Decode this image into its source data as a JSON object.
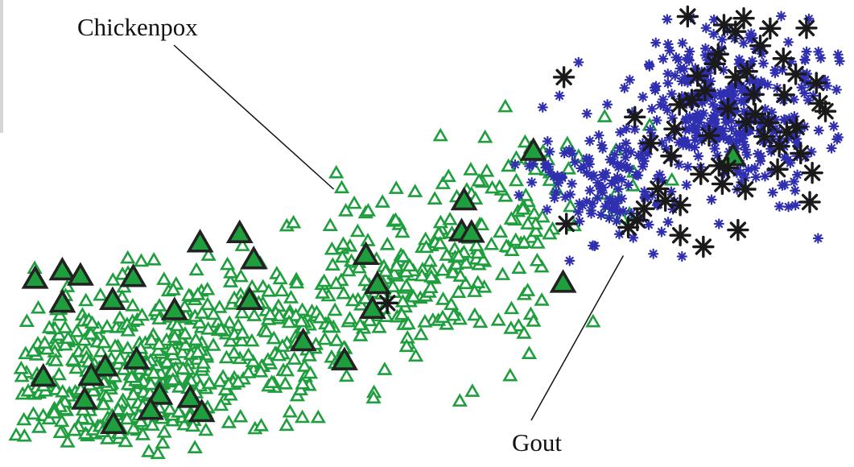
{
  "chart_data": {
    "type": "scatter",
    "title": "",
    "xlabel": "",
    "ylabel": "",
    "xlim": [
      0,
      100
    ],
    "ylim": [
      0,
      100
    ],
    "grid": false,
    "legend": "none",
    "colors": {
      "chickenpox_like": "#1f9e3e",
      "gout_like": "#2f2fb0",
      "highlight_outline": "#222222",
      "highlight_star": "#1a1a1a"
    },
    "series": [
      {
        "marker": "triangle",
        "color": "#1f9e3e",
        "clusters": [
          {
            "cx": 12,
            "cy": 17,
            "sx": 9,
            "sy": 9,
            "n": 380
          },
          {
            "cx": 30,
            "cy": 30,
            "sx": 10,
            "sy": 9,
            "n": 190
          },
          {
            "cx": 50,
            "cy": 40,
            "sx": 8,
            "sy": 9,
            "n": 150
          },
          {
            "cx": 62,
            "cy": 58,
            "sx": 6,
            "sy": 8,
            "n": 70
          }
        ]
      },
      {
        "marker": "small-asterisk",
        "color": "#2f2fb0",
        "clusters": [
          {
            "cx": 87,
            "cy": 78,
            "sx": 6,
            "sy": 10,
            "n": 360
          },
          {
            "cx": 72,
            "cy": 62,
            "sx": 5,
            "sy": 8,
            "n": 130
          }
        ]
      },
      {
        "marker": "large-triangle",
        "color": "#1f9e3e",
        "outline": "#222222",
        "points": [
          [
            2.3,
            39.3
          ],
          [
            5.6,
            41.2
          ],
          [
            5.6,
            33.9
          ],
          [
            11.7,
            34.5
          ],
          [
            14.2,
            39.7
          ],
          [
            19.2,
            32.2
          ],
          [
            27.1,
            49.6
          ],
          [
            22.3,
            47.5
          ],
          [
            28.8,
            43.7
          ],
          [
            28.3,
            34.5
          ],
          [
            42.4,
            44.7
          ],
          [
            43.8,
            38.1
          ],
          [
            43.2,
            32.5
          ],
          [
            34.8,
            25.2
          ],
          [
            39.8,
            20.9
          ],
          [
            10.8,
            19.5
          ],
          [
            14.6,
            21.1
          ],
          [
            9.1,
            17.4
          ],
          [
            3.3,
            17.2
          ],
          [
            8.3,
            12.0
          ],
          [
            17.4,
            13.1
          ],
          [
            21.1,
            12.4
          ],
          [
            16.3,
            9.7
          ],
          [
            22.5,
            9.2
          ],
          [
            11.8,
            6.5
          ],
          [
            54.3,
            57.0
          ],
          [
            54.0,
            50.0
          ],
          [
            55.2,
            49.7
          ],
          [
            62.7,
            68.2
          ],
          [
            66.3,
            38.4
          ],
          [
            86.9,
            67.0
          ],
          [
            7.8,
            40.0
          ]
        ]
      },
      {
        "marker": "large-asterisk",
        "color": "#1a1a1a",
        "points": [
          [
            45.0,
            34.3
          ],
          [
            66.7,
            52.2
          ],
          [
            74.2,
            51.4
          ],
          [
            75.3,
            53.0
          ],
          [
            80.5,
            56.4
          ],
          [
            77.8,
            60.1
          ],
          [
            66.4,
            85.3
          ],
          [
            75.0,
            76.3
          ],
          [
            76.9,
            70.4
          ],
          [
            79.4,
            67.5
          ],
          [
            79.8,
            73.6
          ],
          [
            80.4,
            79.1
          ],
          [
            81.9,
            80.2
          ],
          [
            82.6,
            85.6
          ],
          [
            84.0,
            72.1
          ],
          [
            84.7,
            88.3
          ],
          [
            85.1,
            90.5
          ],
          [
            86.3,
            78.2
          ],
          [
            87.2,
            85.3
          ],
          [
            88.5,
            75.2
          ],
          [
            89.4,
            81.4
          ],
          [
            90.2,
            92.4
          ],
          [
            91.2,
            75.0
          ],
          [
            92.5,
            69.7
          ],
          [
            93.1,
            81.3
          ],
          [
            94.5,
            86.0
          ],
          [
            95.1,
            68.1
          ],
          [
            96.5,
            63.7
          ],
          [
            97.0,
            84.0
          ],
          [
            98.1,
            77.6
          ],
          [
            85.8,
            97.1
          ],
          [
            87.2,
            95.6
          ],
          [
            81.4,
            99.0
          ],
          [
            85.2,
            65.3
          ],
          [
            86.3,
            64.8
          ],
          [
            88.4,
            60.0
          ],
          [
            93.4,
            72.9
          ],
          [
            94.6,
            74.0
          ],
          [
            80.5,
            49.6
          ],
          [
            83.3,
            47.0
          ],
          [
            87.5,
            50.8
          ],
          [
            93.0,
            89.5
          ],
          [
            91.4,
            96.3
          ],
          [
            88.6,
            86.6
          ],
          [
            89.6,
            77.0
          ],
          [
            90.7,
            71.9
          ],
          [
            83.5,
            82.3
          ],
          [
            78.7,
            57.4
          ],
          [
            95.8,
            96.4
          ],
          [
            97.4,
            79.4
          ],
          [
            88.2,
            98.6
          ],
          [
            92.3,
            64.5
          ],
          [
            96.2,
            57.1
          ],
          [
            83.0,
            63.4
          ],
          [
            85.6,
            61.2
          ],
          [
            76.1,
            55.6
          ]
        ]
      }
    ],
    "annotations": [
      {
        "text": "Chickenpox",
        "target": [
          38.5,
          60.0
        ]
      },
      {
        "text": "Gout",
        "target": [
          73.6,
          45.0
        ]
      }
    ]
  }
}
